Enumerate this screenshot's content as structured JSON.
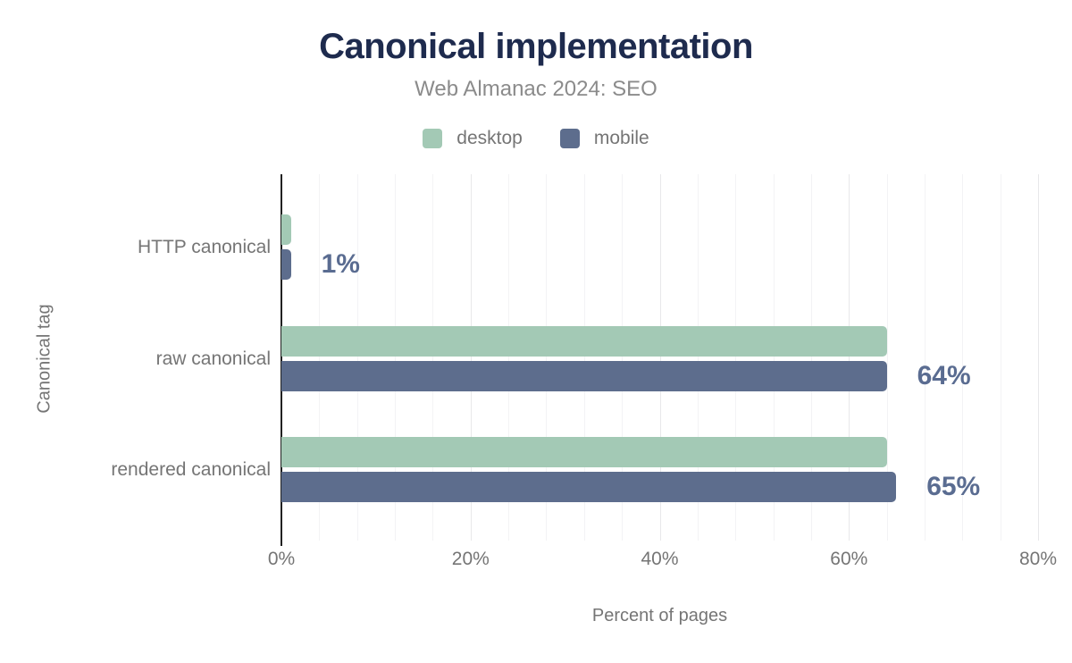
{
  "chart_data": {
    "type": "bar",
    "orientation": "horizontal",
    "title": "Canonical implementation",
    "subtitle": "Web Almanac 2024: SEO",
    "categories": [
      "HTTP canonical",
      "raw canonical",
      "rendered canonical"
    ],
    "series": [
      {
        "name": "desktop",
        "color": "#a3c9b5",
        "values": [
          1,
          64,
          64
        ]
      },
      {
        "name": "mobile",
        "color": "#5d6d8d",
        "values": [
          1,
          64,
          65
        ]
      }
    ],
    "value_labels": [
      "1%",
      "64%",
      "65%"
    ],
    "xlabel": "Percent of pages",
    "ylabel": "Canonical tag",
    "xlim": [
      0,
      80
    ],
    "x_ticks": [
      "0%",
      "20%",
      "40%",
      "60%",
      "80%"
    ],
    "grid_minor_step_pct": 4,
    "grid_major_step_pct": 20,
    "legend_position": "top",
    "colors": {
      "title": "#1e2b4e",
      "subtitle": "#8b8b8b",
      "axis_text": "#757575",
      "value_label": "#5a6c91",
      "axis_line": "#212121"
    }
  }
}
